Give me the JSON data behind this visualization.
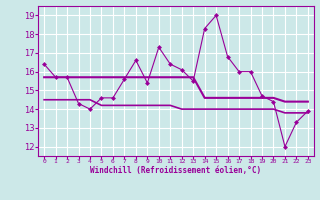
{
  "xlabel": "Windchill (Refroidissement éolien,°C)",
  "x": [
    0,
    1,
    2,
    3,
    4,
    5,
    6,
    7,
    8,
    9,
    10,
    11,
    12,
    13,
    14,
    15,
    16,
    17,
    18,
    19,
    20,
    21,
    22,
    23
  ],
  "y_main": [
    16.4,
    15.7,
    15.7,
    14.3,
    14.0,
    14.6,
    14.6,
    15.6,
    16.6,
    15.4,
    17.3,
    16.4,
    16.1,
    15.5,
    18.3,
    19.0,
    16.8,
    16.0,
    16.0,
    14.7,
    14.4,
    12.0,
    13.3,
    13.9
  ],
  "y_upper_flat": [
    15.7,
    15.7,
    15.7,
    15.7,
    15.7,
    15.7,
    15.7,
    15.7,
    15.7,
    15.7,
    15.7,
    15.7,
    15.7,
    15.7,
    14.6,
    14.6,
    14.6,
    14.6,
    14.6,
    14.6,
    14.6,
    14.4,
    14.4,
    14.4
  ],
  "y_lower_flat": [
    14.5,
    14.5,
    14.5,
    14.5,
    14.5,
    14.2,
    14.2,
    14.2,
    14.2,
    14.2,
    14.2,
    14.2,
    14.0,
    14.0,
    14.0,
    14.0,
    14.0,
    14.0,
    14.0,
    14.0,
    14.0,
    13.8,
    13.8,
    13.8
  ],
  "ylim": [
    11.5,
    19.5
  ],
  "yticks": [
    12,
    13,
    14,
    15,
    16,
    17,
    18,
    19
  ],
  "xtick_labels": [
    "0",
    "1",
    "2",
    "3",
    "4",
    "5",
    "6",
    "7",
    "8",
    "9",
    "10",
    "11",
    "12",
    "13",
    "14",
    "15",
    "16",
    "17",
    "18",
    "19",
    "20",
    "21",
    "22",
    "23"
  ],
  "line_color": "#990099",
  "bg_color": "#cce8e8",
  "grid_color": "#ffffff",
  "marker": "D",
  "marker_size": 2.5
}
